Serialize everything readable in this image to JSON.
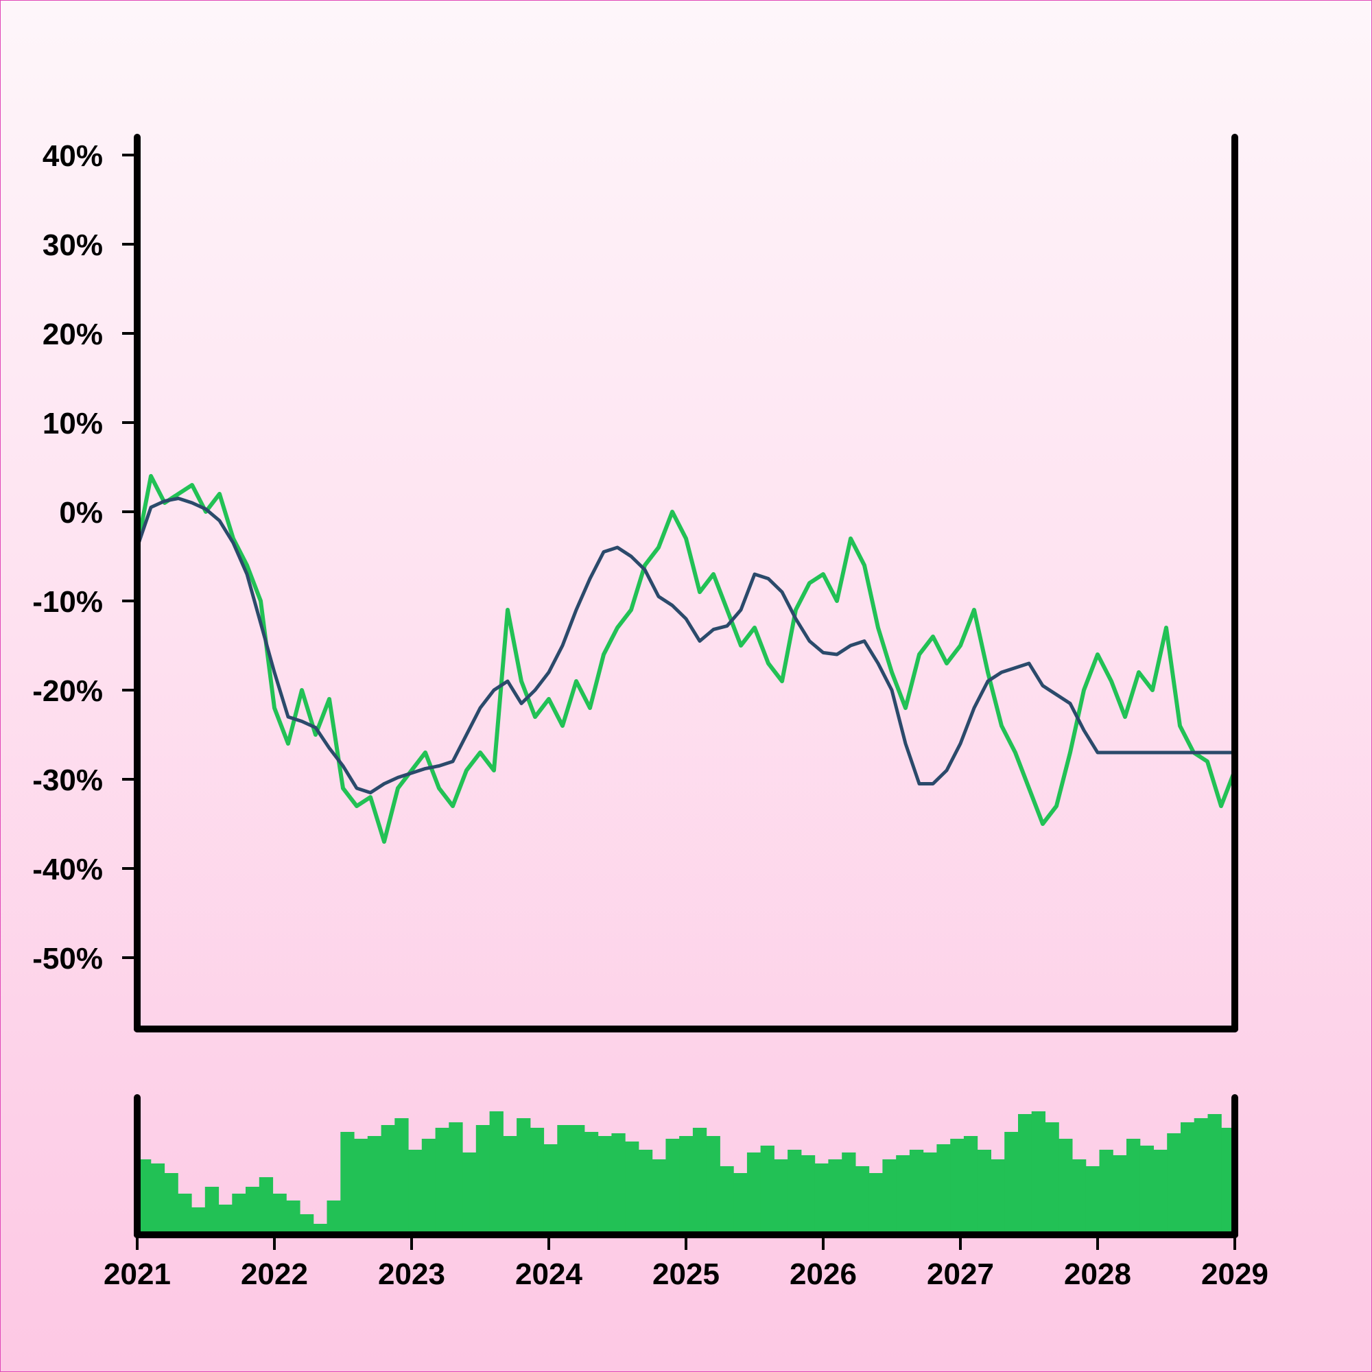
{
  "chart_data": {
    "type": "line",
    "title": "",
    "xlabel": "",
    "ylabel": "",
    "xlim": [
      2021,
      2029
    ],
    "ylim": [
      -58,
      42
    ],
    "x_ticks": [
      "2021",
      "2022",
      "2023",
      "2024",
      "2025",
      "2026",
      "2027",
      "2028",
      "2029"
    ],
    "y_ticks": [
      "40%",
      "30%",
      "20%",
      "10%",
      "0%",
      "-10%",
      "-20%",
      "-30%",
      "-40%",
      "-50%"
    ],
    "y_tick_values": [
      40,
      30,
      20,
      10,
      0,
      -10,
      -20,
      -30,
      -40,
      -50
    ],
    "grid": false,
    "legend": "none",
    "colors": {
      "raw": "#22c155",
      "smoothed": "#2b4a6b",
      "volume": "#22c155",
      "axis": "#000000"
    },
    "series": [
      {
        "role": "raw",
        "x": [
          2021.0,
          2021.1,
          2021.2,
          2021.3,
          2021.4,
          2021.5,
          2021.6,
          2021.7,
          2021.8,
          2021.9,
          2022.0,
          2022.1,
          2022.2,
          2022.3,
          2022.4,
          2022.5,
          2022.6,
          2022.7,
          2022.8,
          2022.9,
          2023.0,
          2023.1,
          2023.2,
          2023.3,
          2023.4,
          2023.5,
          2023.6,
          2023.7,
          2023.8,
          2023.9,
          2024.0,
          2024.1,
          2024.2,
          2024.3,
          2024.4,
          2024.5,
          2024.6,
          2024.7,
          2024.8,
          2024.9,
          2025.0,
          2025.1,
          2025.2,
          2025.3,
          2025.4,
          2025.5,
          2025.6,
          2025.7,
          2025.8,
          2025.9,
          2026.0,
          2026.1,
          2026.2,
          2026.3,
          2026.4,
          2026.5,
          2026.6,
          2026.7,
          2026.8,
          2026.9,
          2027.0,
          2027.1,
          2027.2,
          2027.3,
          2027.4,
          2027.5,
          2027.6,
          2027.7,
          2027.8,
          2027.9,
          2028.0,
          2028.1,
          2028.2,
          2028.3,
          2028.4,
          2028.5,
          2028.6,
          2028.7,
          2028.8,
          2028.9,
          2029.0
        ],
        "y": [
          -4,
          4,
          1,
          2,
          3,
          0,
          2,
          -3,
          -6,
          -10,
          -22,
          -26,
          -20,
          -25,
          -21,
          -31,
          -33,
          -32,
          -37,
          -31,
          -29,
          -27,
          -31,
          -33,
          -29,
          -27,
          -29,
          -11,
          -19,
          -23,
          -21,
          -24,
          -19,
          -22,
          -16,
          -13,
          -11,
          -6,
          -4,
          0,
          -3,
          -9,
          -7,
          -11,
          -15,
          -13,
          -17,
          -19,
          -11,
          -8,
          -7,
          -10,
          -3,
          -6,
          -13,
          -18,
          -22,
          -16,
          -14,
          -17,
          -15,
          -11,
          -18,
          -24,
          -27,
          -31,
          -35,
          -33,
          -27,
          -20,
          -16,
          -19,
          -23,
          -18,
          -20,
          -13,
          -24,
          -27,
          -28,
          -33,
          -29
        ]
      },
      {
        "role": "smoothed",
        "x": [
          2021.0,
          2021.1,
          2021.2,
          2021.3,
          2021.4,
          2021.5,
          2021.6,
          2021.7,
          2021.8,
          2021.9,
          2022.0,
          2022.1,
          2022.2,
          2022.3,
          2022.4,
          2022.5,
          2022.6,
          2022.7,
          2022.8,
          2022.9,
          2023.0,
          2023.1,
          2023.2,
          2023.3,
          2023.4,
          2023.5,
          2023.6,
          2023.7,
          2023.8,
          2023.9,
          2024.0,
          2024.1,
          2024.2,
          2024.3,
          2024.4,
          2024.5,
          2024.6,
          2024.7,
          2024.8,
          2024.9,
          2025.0,
          2025.1,
          2025.2,
          2025.3,
          2025.4,
          2025.5,
          2025.6,
          2025.7,
          2025.8,
          2025.9,
          2026.0,
          2026.1,
          2026.2,
          2026.3,
          2026.4,
          2026.5,
          2026.6,
          2026.7,
          2026.8,
          2026.9,
          2027.0,
          2027.1,
          2027.2,
          2027.3,
          2027.4,
          2027.5,
          2027.6,
          2027.7,
          2027.8,
          2027.9,
          2028.0,
          2028.1,
          2028.2,
          2028.3,
          2028.4,
          2028.5,
          2028.6,
          2028.7,
          2028.8,
          2028.9,
          2029.0
        ],
        "y": [
          -4,
          0.5,
          1.2,
          1.5,
          1.0,
          0.3,
          -1.0,
          -3.5,
          -7.0,
          -12.5,
          -18.0,
          -23.0,
          -23.5,
          -24.2,
          -26.5,
          -28.5,
          -31.0,
          -31.5,
          -30.5,
          -29.8,
          -29.3,
          -28.8,
          -28.5,
          -28.0,
          -25.0,
          -22.0,
          -20.0,
          -19.0,
          -21.5,
          -20.0,
          -18.0,
          -15.0,
          -11.0,
          -7.5,
          -4.5,
          -4.0,
          -5.0,
          -6.5,
          -9.5,
          -10.5,
          -12.0,
          -14.5,
          -13.2,
          -12.8,
          -11.0,
          -7.0,
          -7.5,
          -9.0,
          -12.0,
          -14.5,
          -15.8,
          -16.0,
          -15.0,
          -14.5,
          -17.0,
          -20.0,
          -26.0,
          -30.5,
          -30.5,
          -29.0,
          -26.0,
          -22.0,
          -19.0,
          -18.0,
          -17.5,
          -17.0,
          -19.5,
          -20.5,
          -21.5,
          -24.5,
          -27.0,
          -27.0,
          -27.0,
          -27.0,
          -27.0,
          -27.0,
          -27.0,
          -27.0,
          -27.0,
          -27.0,
          -27.0
        ]
      }
    ],
    "volume": {
      "role": "volume",
      "note_levels": "relative 0-1",
      "values": [
        0.55,
        0.52,
        0.45,
        0.3,
        0.2,
        0.35,
        0.22,
        0.3,
        0.35,
        0.42,
        0.3,
        0.25,
        0.15,
        0.08,
        0.25,
        0.75,
        0.7,
        0.72,
        0.8,
        0.85,
        0.62,
        0.7,
        0.78,
        0.82,
        0.6,
        0.8,
        0.9,
        0.72,
        0.85,
        0.78,
        0.66,
        0.8,
        0.8,
        0.75,
        0.72,
        0.74,
        0.68,
        0.62,
        0.55,
        0.7,
        0.72,
        0.78,
        0.72,
        0.5,
        0.45,
        0.6,
        0.65,
        0.55,
        0.62,
        0.58,
        0.52,
        0.55,
        0.6,
        0.5,
        0.45,
        0.55,
        0.58,
        0.62,
        0.6,
        0.66,
        0.7,
        0.72,
        0.62,
        0.55,
        0.75,
        0.88,
        0.9,
        0.82,
        0.7,
        0.55,
        0.5,
        0.62,
        0.58,
        0.7,
        0.65,
        0.62,
        0.74,
        0.82,
        0.85,
        0.88,
        0.78
      ]
    }
  }
}
